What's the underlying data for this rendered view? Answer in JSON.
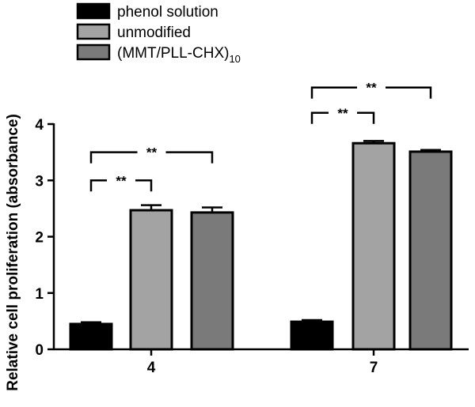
{
  "chart_data": {
    "type": "bar",
    "categories": [
      "4",
      "7"
    ],
    "series": [
      {
        "name": "phenol solution",
        "values": [
          0.45,
          0.49
        ],
        "errors": [
          0.03,
          0.03
        ],
        "color": "#000000"
      },
      {
        "name": "unmodified",
        "values": [
          2.47,
          3.66
        ],
        "errors": [
          0.09,
          0.04
        ],
        "color": "#a3a3a3"
      },
      {
        "name": "(MMT/PLL-CHX)",
        "subscript": "10",
        "values": [
          2.43,
          3.51
        ],
        "errors": [
          0.09,
          0.03
        ],
        "color": "#7a7a7a"
      }
    ],
    "ylabel": "Relative cell proliferation (absorbance)",
    "xlabel": "",
    "ylim": [
      0,
      4
    ],
    "yticks": [
      "0",
      "1",
      "2",
      "3",
      "4"
    ],
    "grid": false,
    "legend_position": "top-left",
    "significance": [
      {
        "category": "4",
        "from_series": 0,
        "to_series": 1,
        "label": "**",
        "level": 3.0
      },
      {
        "category": "4",
        "from_series": 0,
        "to_series": 2,
        "label": "**",
        "level": 3.5
      },
      {
        "category": "7",
        "from_series": 0,
        "to_series": 1,
        "label": "**",
        "level": 4.2
      },
      {
        "category": "7",
        "from_series": 0,
        "to_series": 2,
        "label": "**",
        "level": 4.65
      }
    ]
  }
}
